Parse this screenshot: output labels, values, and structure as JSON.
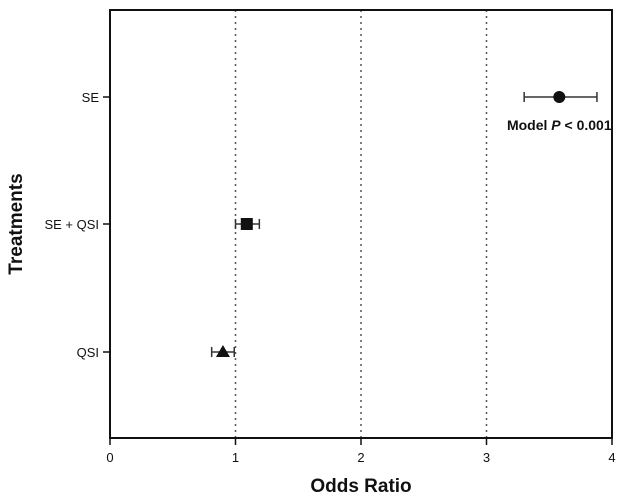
{
  "chart_data": {
    "type": "scatter",
    "title": "",
    "xlabel": "Odds Ratio",
    "ylabel": "Treatments",
    "xlim": [
      0,
      4
    ],
    "x_ticks": [
      "0",
      "1",
      "2",
      "3",
      "4"
    ],
    "categories": [
      "SE",
      "SE + QSI",
      "QSI"
    ],
    "grid_x_at": [
      1,
      2,
      3
    ],
    "grid_style": "dotted",
    "points": [
      {
        "category": "SE",
        "value": 3.58,
        "ci_low": 3.3,
        "ci_high": 3.88,
        "marker": "circle"
      },
      {
        "category": "SE + QSI",
        "value": 1.09,
        "ci_low": 1.0,
        "ci_high": 1.19,
        "marker": "square"
      },
      {
        "category": "QSI",
        "value": 0.9,
        "ci_low": 0.81,
        "ci_high": 0.99,
        "marker": "triangle"
      }
    ],
    "annotation": {
      "prefix": "Model ",
      "italic": "P",
      "suffix": " < 0.001"
    },
    "colors": {
      "marker": "#111111",
      "errorbar": "#333333",
      "grid": "#555555"
    }
  }
}
